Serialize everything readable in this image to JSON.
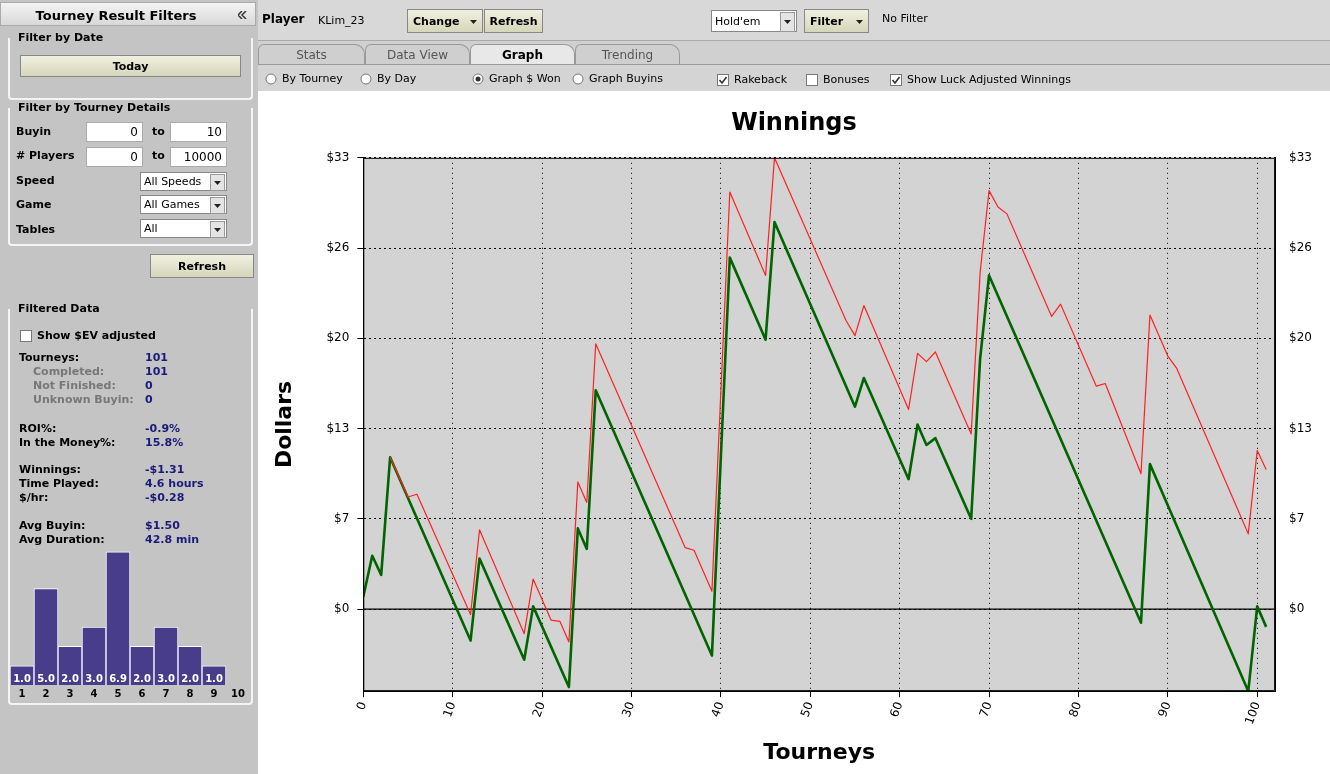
{
  "chart_data": [
    {
      "type": "other",
      "annotations": [
        "Tourney Result Filters",
        "Filter by Date",
        "Today",
        "Filter by Tourney Details",
        "Buyin",
        "0",
        "to",
        "10",
        "# Players",
        "0",
        "to",
        "10000",
        "Speed",
        "All Speeds",
        "Game",
        "All Games",
        "Tables",
        "All",
        "Refresh",
        "Filtered Data",
        "Show $EV adjusted",
        "Tourneys:",
        "101",
        "Completed:",
        "101",
        "Not Finished:",
        "0",
        "Unknown Buyin:",
        "0",
        "ROI%:",
        "-0.9%",
        "In the Money%:",
        "15.8%",
        "Winnings:",
        "-$1.31",
        "Time Played:",
        "4.6 hours",
        "$/hr:",
        "-$0.28",
        "Avg Buyin:",
        "$1.50",
        "Avg Duration:",
        "42.8 min",
        "Player",
        "KLim_23",
        "Change",
        "Refresh",
        "Hold'em",
        "Filter",
        "No Filter",
        "Stats",
        "Data View",
        "Graph",
        "Trending",
        "By Tourney",
        "By Day",
        "Graph $ Won",
        "Graph Buyins",
        "Rakeback",
        "Bonuses",
        "Show Luck Adjusted Winnings"
      ]
    },
    {
      "type": "bar",
      "categories": [
        "1",
        "2",
        "3",
        "4",
        "5",
        "6",
        "7",
        "8",
        "9",
        "10"
      ],
      "values": [
        1.0,
        5.0,
        2.0,
        3.0,
        6.9,
        2.0,
        3.0,
        2.0,
        1.0,
        null
      ],
      "value_labels": [
        "1.0",
        "5.0",
        "2.0",
        "3.0",
        "6.9",
        "2.0",
        "3.0",
        "2.0",
        "1.0",
        null
      ],
      "color": "#483d8b",
      "legend": false,
      "grid": false,
      "tick_labels": "x"
    },
    {
      "type": "line",
      "title": "Winnings",
      "xlabel": "Tourneys",
      "ylabel": "Dollars",
      "xlim": [
        0,
        102
      ],
      "xticks": [
        0,
        10,
        20,
        30,
        40,
        50,
        60,
        70,
        80,
        90,
        100
      ],
      "ylim": [
        -6,
        33
      ],
      "yticks": [
        {
          "value": 0,
          "label": "$0"
        },
        {
          "value": 6.6,
          "label": "$7"
        },
        {
          "value": 13.2,
          "label": "$13"
        },
        {
          "value": 19.8,
          "label": "$20"
        },
        {
          "value": 26.4,
          "label": "$26"
        },
        {
          "value": 33,
          "label": "$33"
        }
      ],
      "y2lim": [
        -6,
        33
      ],
      "y2ticks": [
        {
          "value": 0,
          "label": "$0"
        },
        {
          "value": 6.6,
          "label": "$7"
        },
        {
          "value": 13.2,
          "label": "$13"
        },
        {
          "value": 19.8,
          "label": "$20"
        },
        {
          "value": 26.4,
          "label": "$26"
        },
        {
          "value": 33,
          "label": "$33"
        }
      ],
      "grid": true,
      "legend": false,
      "marker": "none",
      "line_style": "solid",
      "ref_lines": [
        {
          "axis": "y",
          "value": 0,
          "color": "#000000"
        }
      ],
      "series": [
        {
          "color": "#ff2020",
          "x": [
            3,
            5,
            6,
            12,
            13,
            18,
            19,
            21,
            22,
            23,
            24,
            25,
            26,
            36,
            37,
            39,
            41,
            45,
            46,
            54,
            55,
            56,
            61,
            62,
            63,
            64,
            68,
            69,
            70,
            71,
            72,
            77,
            78,
            82,
            83,
            87,
            88,
            90,
            91,
            99,
            100,
            101
          ],
          "values": [
            11.1,
            8.2,
            8.4,
            -0.4,
            5.8,
            -1.8,
            2.2,
            -0.8,
            -0.9,
            -2.4,
            9.3,
            7.8,
            19.4,
            4.5,
            4.3,
            1.3,
            30.5,
            24.4,
            33,
            21.1,
            20.0,
            22.2,
            14.6,
            18.7,
            18.1,
            18.8,
            12.8,
            24.6,
            30.6,
            29.4,
            28.9,
            21.4,
            22.3,
            16.3,
            16.5,
            9.9,
            21.5,
            18.5,
            17.6,
            5.5,
            11.6,
            10.2
          ]
        },
        {
          "color": "#006400",
          "x": [
            0,
            1,
            2,
            3,
            12,
            13,
            18,
            19,
            23,
            24,
            25,
            26,
            39,
            41,
            45,
            46,
            55,
            56,
            61,
            62,
            63,
            64,
            68,
            69,
            70,
            87,
            88,
            99,
            100,
            101
          ],
          "values": [
            0.9,
            3.9,
            2.5,
            11.1,
            -2.3,
            3.7,
            -3.7,
            0.2,
            -5.7,
            5.9,
            4.4,
            16.0,
            -3.4,
            25.7,
            19.7,
            28.3,
            14.8,
            16.9,
            9.5,
            13.5,
            12.0,
            12.5,
            6.6,
            18.3,
            24.4,
            -1.0,
            10.6,
            -6.0,
            0.2,
            -1.3
          ]
        }
      ]
    }
  ]
}
